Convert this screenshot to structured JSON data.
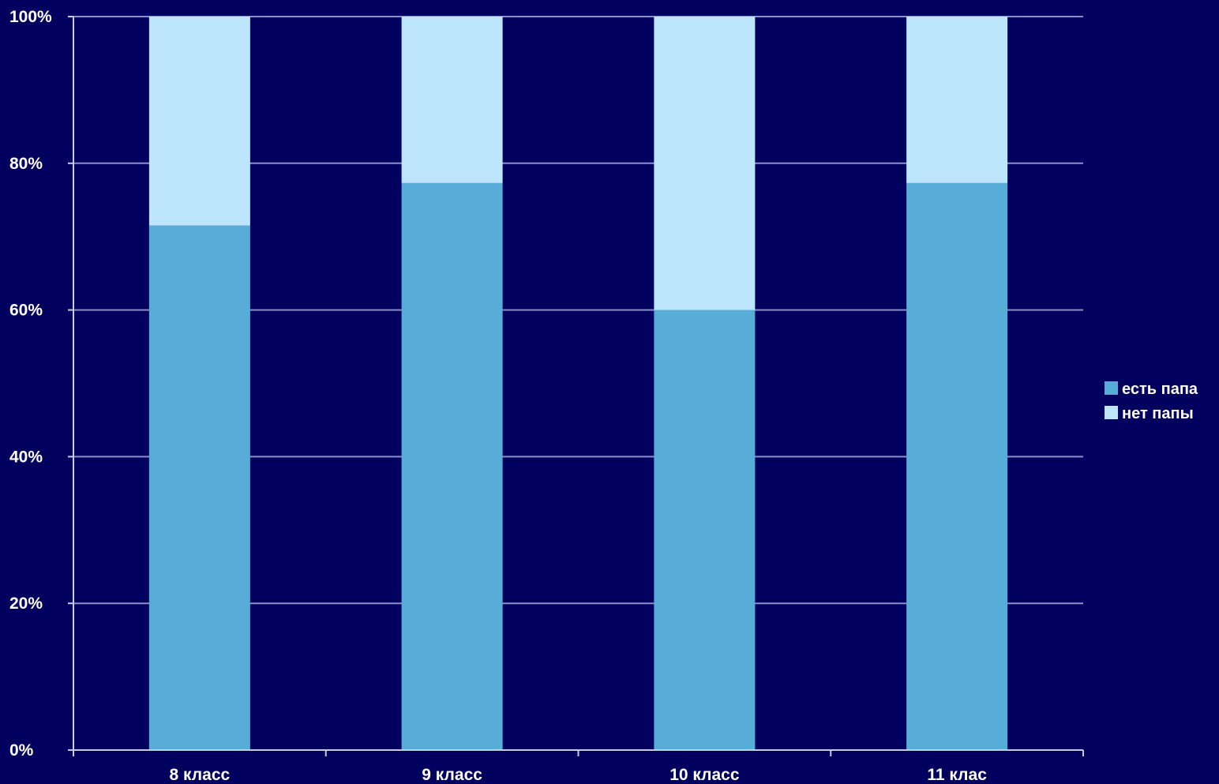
{
  "colors": {
    "background": "#02005E",
    "grid": "#8A8FCC",
    "axis": "#C8CAE6",
    "text": "#FFFFFF"
  },
  "chart_data": {
    "type": "bar",
    "stacked": "percent",
    "categories": [
      "8 класс",
      "9 класс",
      "10 класс",
      "11 клас"
    ],
    "series": [
      {
        "name": "есть папа",
        "values": [
          71.5,
          77.3,
          60,
          77.3
        ],
        "color": "#58ACD8"
      },
      {
        "name": "нет папы",
        "values": [
          28.5,
          22.7,
          40,
          22.7
        ],
        "color": "#BDE6FC"
      }
    ],
    "y_ticks": [
      "0%",
      "20%",
      "40%",
      "60%",
      "80%",
      "100%"
    ],
    "ylim": [
      0,
      100
    ],
    "grid": true,
    "legend_position": "right"
  }
}
